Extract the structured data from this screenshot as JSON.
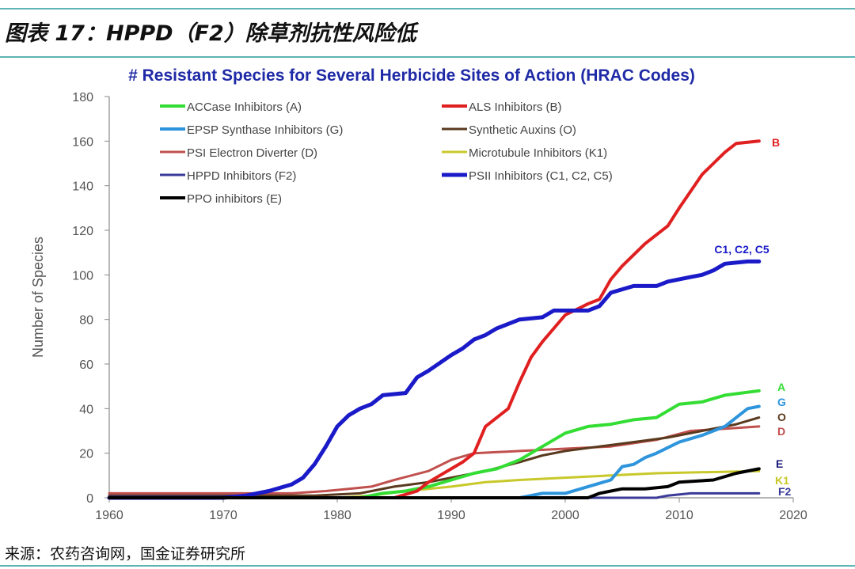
{
  "header": {
    "figure_title": "图表 17：HPPD（F2）除草剂抗性风险低"
  },
  "footer": {
    "source": "来源：农药咨询网，国金证券研究所"
  },
  "chart_data": {
    "type": "line",
    "title": "# Resistant Species for Several Herbicide Sites of Action (HRAC Codes)",
    "xlabel": "",
    "ylabel": "Number of Species",
    "xlim": [
      1960,
      2020
    ],
    "ylim": [
      0,
      180
    ],
    "xticks": [
      1960,
      1970,
      1980,
      1990,
      2000,
      2010,
      2020
    ],
    "yticks": [
      0,
      20,
      40,
      60,
      80,
      100,
      120,
      140,
      160,
      180
    ],
    "grid": false,
    "legend_position": "top-left, two columns",
    "title_color": "#1f2aa6",
    "series": [
      {
        "name": "ACCase Inhibitors (A)",
        "end_label": "A",
        "color": "#33dd33",
        "width": 4,
        "points": [
          [
            1960,
            0
          ],
          [
            1980,
            0
          ],
          [
            1982,
            0
          ],
          [
            1984,
            2
          ],
          [
            1986,
            3
          ],
          [
            1988,
            5
          ],
          [
            1990,
            8
          ],
          [
            1992,
            11
          ],
          [
            1994,
            13
          ],
          [
            1996,
            17
          ],
          [
            1998,
            23
          ],
          [
            2000,
            29
          ],
          [
            2002,
            32
          ],
          [
            2004,
            33
          ],
          [
            2006,
            35
          ],
          [
            2008,
            36
          ],
          [
            2010,
            42
          ],
          [
            2012,
            43
          ],
          [
            2014,
            46
          ],
          [
            2017,
            48
          ]
        ]
      },
      {
        "name": "ALS Inhibitors (B)",
        "end_label": "B",
        "color": "#e02020",
        "width": 4,
        "points": [
          [
            1960,
            0
          ],
          [
            1985,
            0
          ],
          [
            1987,
            3
          ],
          [
            1988,
            7
          ],
          [
            1989,
            10
          ],
          [
            1990,
            13
          ],
          [
            1991,
            16
          ],
          [
            1992,
            20
          ],
          [
            1993,
            32
          ],
          [
            1995,
            40
          ],
          [
            1996,
            52
          ],
          [
            1997,
            63
          ],
          [
            1998,
            70
          ],
          [
            2000,
            82
          ],
          [
            2002,
            87
          ],
          [
            2003,
            89
          ],
          [
            2004,
            98
          ],
          [
            2005,
            104
          ],
          [
            2007,
            114
          ],
          [
            2009,
            122
          ],
          [
            2010,
            130
          ],
          [
            2012,
            145
          ],
          [
            2013,
            150
          ],
          [
            2014,
            155
          ],
          [
            2015,
            159
          ],
          [
            2017,
            160
          ]
        ]
      },
      {
        "name": "EPSP Synthase Inhibitors (G)",
        "end_label": "G",
        "color": "#2e95dd",
        "width": 4,
        "points": [
          [
            1960,
            0
          ],
          [
            1996,
            0
          ],
          [
            1998,
            2
          ],
          [
            2000,
            2
          ],
          [
            2002,
            5
          ],
          [
            2004,
            8
          ],
          [
            2005,
            14
          ],
          [
            2006,
            15
          ],
          [
            2007,
            18
          ],
          [
            2008,
            20
          ],
          [
            2010,
            25
          ],
          [
            2012,
            28
          ],
          [
            2014,
            32
          ],
          [
            2016,
            40
          ],
          [
            2017,
            41
          ]
        ]
      },
      {
        "name": "Synthetic Auxins (O)",
        "end_label": "O",
        "color": "#5a3a1e",
        "width": 3,
        "points": [
          [
            1960,
            1
          ],
          [
            1978,
            1
          ],
          [
            1982,
            2
          ],
          [
            1985,
            5
          ],
          [
            1988,
            7
          ],
          [
            1990,
            9
          ],
          [
            1993,
            12
          ],
          [
            1996,
            16
          ],
          [
            1998,
            19
          ],
          [
            2000,
            21
          ],
          [
            2003,
            23
          ],
          [
            2006,
            25
          ],
          [
            2009,
            27
          ],
          [
            2012,
            30
          ],
          [
            2015,
            33
          ],
          [
            2017,
            36
          ]
        ]
      },
      {
        "name": "PSI Electron Diverter (D)",
        "end_label": "D",
        "color": "#c0504d",
        "width": 3,
        "points": [
          [
            1960,
            2
          ],
          [
            1976,
            2
          ],
          [
            1979,
            3
          ],
          [
            1981,
            4
          ],
          [
            1983,
            5
          ],
          [
            1985,
            8
          ],
          [
            1988,
            12
          ],
          [
            1990,
            17
          ],
          [
            1992,
            20
          ],
          [
            1996,
            21
          ],
          [
            2000,
            22
          ],
          [
            2004,
            23
          ],
          [
            2008,
            26
          ],
          [
            2011,
            30
          ],
          [
            2014,
            31
          ],
          [
            2017,
            32
          ]
        ]
      },
      {
        "name": "Microtubule Inhibitors (K1)",
        "end_label": "K1",
        "color": "#c8c82a",
        "width": 3,
        "points": [
          [
            1960,
            0
          ],
          [
            1980,
            0
          ],
          [
            1983,
            1
          ],
          [
            1986,
            3
          ],
          [
            1988,
            4
          ],
          [
            1990,
            5
          ],
          [
            1993,
            7
          ],
          [
            1996,
            8
          ],
          [
            2000,
            9
          ],
          [
            2004,
            10
          ],
          [
            2008,
            11
          ],
          [
            2017,
            12
          ]
        ]
      },
      {
        "name": "HPPD Inhibitors (F2)",
        "end_label": "F2",
        "color": "#3a3a99",
        "width": 3,
        "points": [
          [
            1960,
            0
          ],
          [
            2008,
            0
          ],
          [
            2009,
            1
          ],
          [
            2011,
            2
          ],
          [
            2017,
            2
          ]
        ]
      },
      {
        "name": "PSII Inhibitors (C1, C2, C5)",
        "end_label": "C1, C2, C5",
        "color": "#1a1ac8",
        "width": 5,
        "points": [
          [
            1960,
            0
          ],
          [
            1970,
            0
          ],
          [
            1972,
            1
          ],
          [
            1974,
            3
          ],
          [
            1976,
            6
          ],
          [
            1977,
            9
          ],
          [
            1978,
            15
          ],
          [
            1979,
            23
          ],
          [
            1980,
            32
          ],
          [
            1981,
            37
          ],
          [
            1982,
            40
          ],
          [
            1983,
            42
          ],
          [
            1984,
            46
          ],
          [
            1986,
            47
          ],
          [
            1987,
            54
          ],
          [
            1988,
            57
          ],
          [
            1990,
            64
          ],
          [
            1991,
            67
          ],
          [
            1992,
            71
          ],
          [
            1993,
            73
          ],
          [
            1994,
            76
          ],
          [
            1996,
            80
          ],
          [
            1998,
            81
          ],
          [
            1999,
            84
          ],
          [
            2002,
            84
          ],
          [
            2003,
            86
          ],
          [
            2004,
            92
          ],
          [
            2006,
            95
          ],
          [
            2008,
            95
          ],
          [
            2009,
            97
          ],
          [
            2011,
            99
          ],
          [
            2012,
            100
          ],
          [
            2013,
            102
          ],
          [
            2014,
            105
          ],
          [
            2016,
            106
          ],
          [
            2017,
            106
          ]
        ]
      },
      {
        "name": "PPO inhibitors (E)",
        "end_label": "E",
        "color": "#000000",
        "width": 4,
        "points": [
          [
            1960,
            0
          ],
          [
            2002,
            0
          ],
          [
            2003,
            2
          ],
          [
            2005,
            4
          ],
          [
            2007,
            4
          ],
          [
            2009,
            5
          ],
          [
            2010,
            7
          ],
          [
            2013,
            8
          ],
          [
            2015,
            11
          ],
          [
            2017,
            13
          ]
        ]
      }
    ]
  }
}
